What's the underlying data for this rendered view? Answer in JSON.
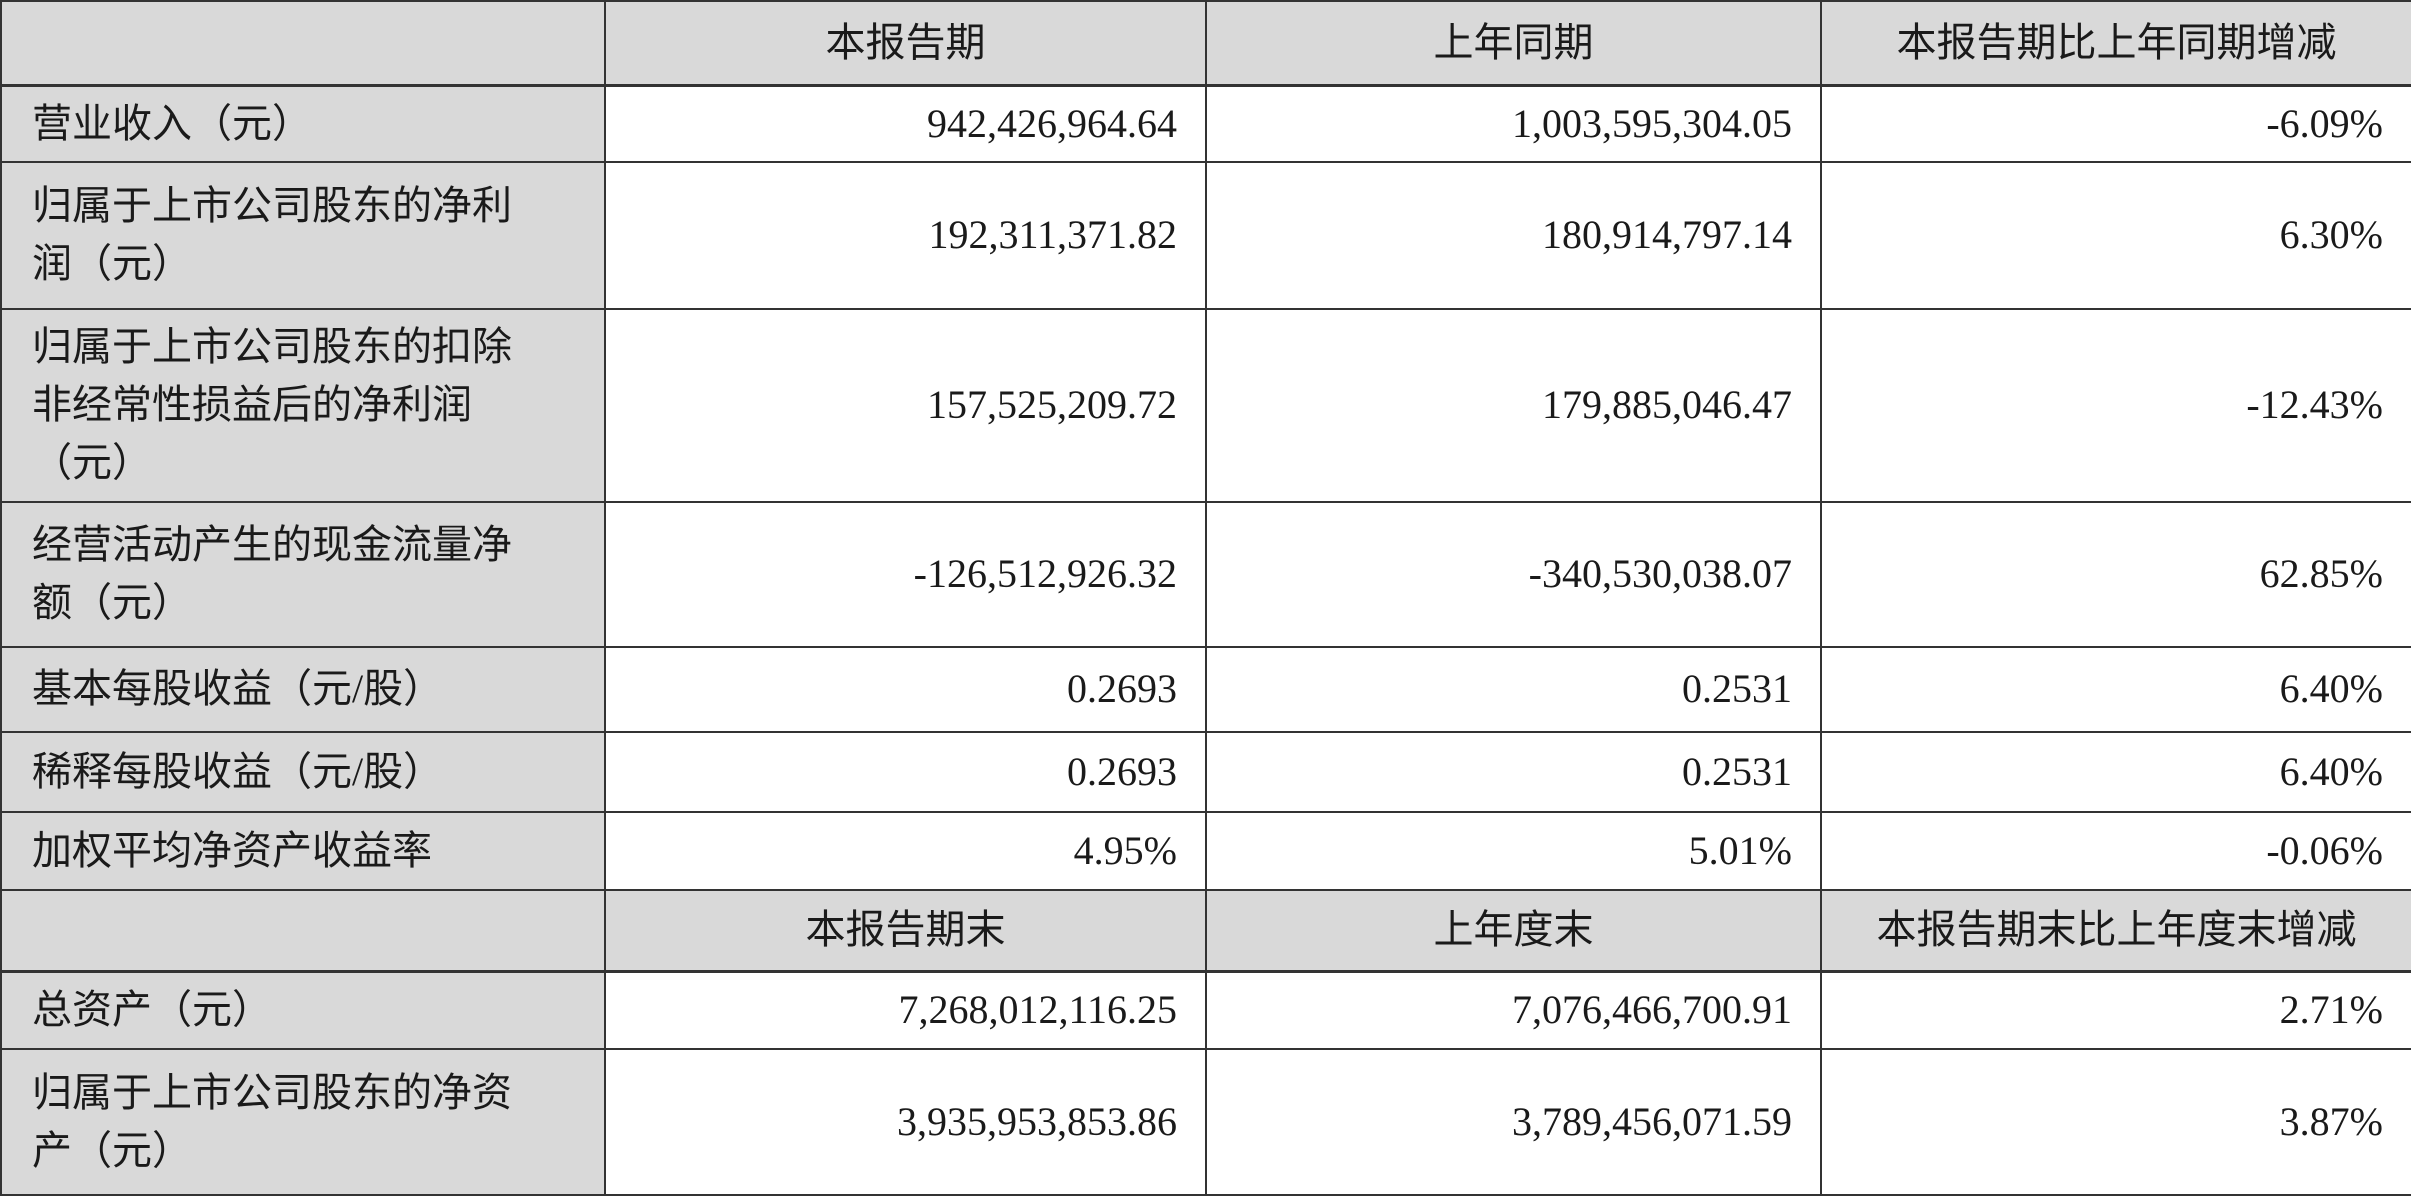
{
  "colors": {
    "header_bg": "#d9d9d9",
    "cell_bg": "#ffffff",
    "border": "#333333",
    "text": "#1a1a1a"
  },
  "section_period": {
    "header": {
      "current": "本报告期",
      "prior": "上年同期",
      "change": "本报告期比上年同期增减"
    },
    "rows": [
      {
        "label": "营业收入（元）",
        "current": "942,426,964.64",
        "prior": "1,003,595,304.05",
        "change": "-6.09%"
      },
      {
        "label": "归属于上市公司股东的净利润（元）",
        "current": "192,311,371.82",
        "prior": "180,914,797.14",
        "change": "6.30%"
      },
      {
        "label": "归属于上市公司股东的扣除非经常性损益后的净利润（元）",
        "current": "157,525,209.72",
        "prior": "179,885,046.47",
        "change": "-12.43%"
      },
      {
        "label": "经营活动产生的现金流量净额（元）",
        "current": "-126,512,926.32",
        "prior": "-340,530,038.07",
        "change": "62.85%"
      },
      {
        "label": "基本每股收益（元/股）",
        "current": "0.2693",
        "prior": "0.2531",
        "change": "6.40%"
      },
      {
        "label": "稀释每股收益（元/股）",
        "current": "0.2693",
        "prior": "0.2531",
        "change": "6.40%"
      },
      {
        "label": "加权平均净资产收益率",
        "current": "4.95%",
        "prior": "5.01%",
        "change": "-0.06%"
      }
    ]
  },
  "section_period_end": {
    "header": {
      "current": "本报告期末",
      "prior": "上年度末",
      "change": "本报告期末比上年度末增减"
    },
    "rows": [
      {
        "label": "总资产（元）",
        "current": "7,268,012,116.25",
        "prior": "7,076,466,700.91",
        "change": "2.71%"
      },
      {
        "label": "归属于上市公司股东的净资产（元）",
        "current": "3,935,953,853.86",
        "prior": "3,789,456,071.59",
        "change": "3.87%"
      }
    ]
  }
}
